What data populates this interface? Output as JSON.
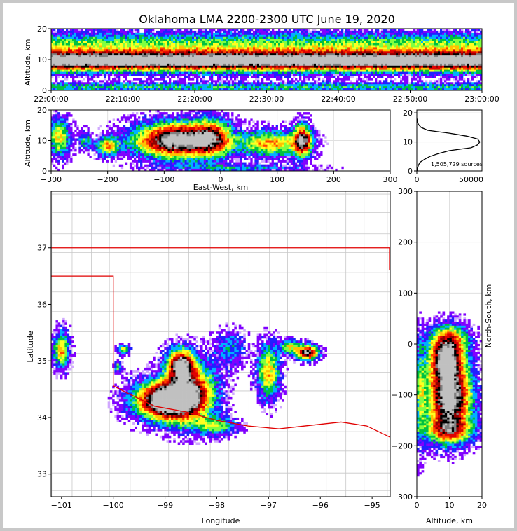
{
  "title": "Oklahoma LMA 2200-2300 UTC June 19, 2020",
  "colors": {
    "scale": [
      "#ffffff",
      "#d0a8ff",
      "#8000ff",
      "#2020ff",
      "#00b0ff",
      "#00c040",
      "#80ff40",
      "#ffff20",
      "#ffc000",
      "#ff4000",
      "#e00000",
      "#900000",
      "#000000",
      "#808080",
      "#c0c0c0"
    ],
    "state_border": "#e00000",
    "county": "#c8c8c8",
    "grid": "#e0e0e0"
  },
  "chart_data": [
    {
      "id": "time_height",
      "type": "heatmap",
      "xlabel": "",
      "ylabel": "Altitude, km",
      "x_ticks": [
        "22:00:00",
        "22:10:00",
        "22:20:00",
        "22:30:00",
        "22:40:00",
        "22:50:00",
        "23:00:00"
      ],
      "y_ticks": [
        "0",
        "10",
        "20"
      ],
      "xlim": [
        "22:00:00",
        "23:00:00"
      ],
      "ylim": [
        0,
        20
      ],
      "grid": true
    },
    {
      "id": "ew_height",
      "type": "heatmap",
      "xlabel": "East-West, km",
      "ylabel": "Altitude, km",
      "x_ticks": [
        "−300",
        "−200",
        "−100",
        "0",
        "100",
        "200",
        "300"
      ],
      "y_ticks": [
        "0",
        "10",
        "20"
      ],
      "xlim": [
        -300,
        300
      ],
      "ylim": [
        0,
        20
      ],
      "grid": true
    },
    {
      "id": "altitude_histogram",
      "type": "line",
      "annotation": "1,505,729 sources",
      "x_ticks": [
        "0",
        "50000"
      ],
      "y_ticks": [
        "0",
        "10",
        "20"
      ],
      "xlim": [
        0,
        60000
      ],
      "ylim": [
        0,
        21
      ],
      "series": [
        {
          "x": [
            100,
            700,
            1500,
            3000,
            7000,
            12000,
            20000,
            30000,
            40000,
            50000,
            56000,
            58000,
            56000,
            46000,
            38000,
            30000,
            20000,
            10000,
            4000,
            1500,
            500,
            200
          ],
          "y": [
            0,
            1,
            2,
            3,
            4,
            5,
            6,
            7,
            7.5,
            8,
            9,
            10,
            11,
            12,
            12.5,
            13,
            13.5,
            14,
            15,
            16,
            17,
            18
          ]
        }
      ],
      "grid": true
    },
    {
      "id": "plan_view",
      "type": "heatmap",
      "xlabel": "Longitude",
      "ylabel": "Latitude",
      "x_ticks": [
        "−101",
        "−100",
        "−99",
        "−98",
        "−97",
        "−96",
        "−95"
      ],
      "y_ticks": [
        "33",
        "34",
        "35",
        "36",
        "37"
      ],
      "xlim": [
        -101.2,
        -94.65
      ],
      "ylim": [
        32.6,
        38.0
      ],
      "grid": true
    },
    {
      "id": "ns_height",
      "type": "heatmap",
      "xlabel": "Altitude, km",
      "ylabel": "North-South, km",
      "x_ticks": [
        "0",
        "10",
        "20"
      ],
      "y_ticks": [
        "−300",
        "−200",
        "−100",
        "0",
        "100",
        "200",
        "300"
      ],
      "xlim": [
        0,
        20
      ],
      "ylim": [
        -300,
        300
      ],
      "grid": true
    }
  ]
}
